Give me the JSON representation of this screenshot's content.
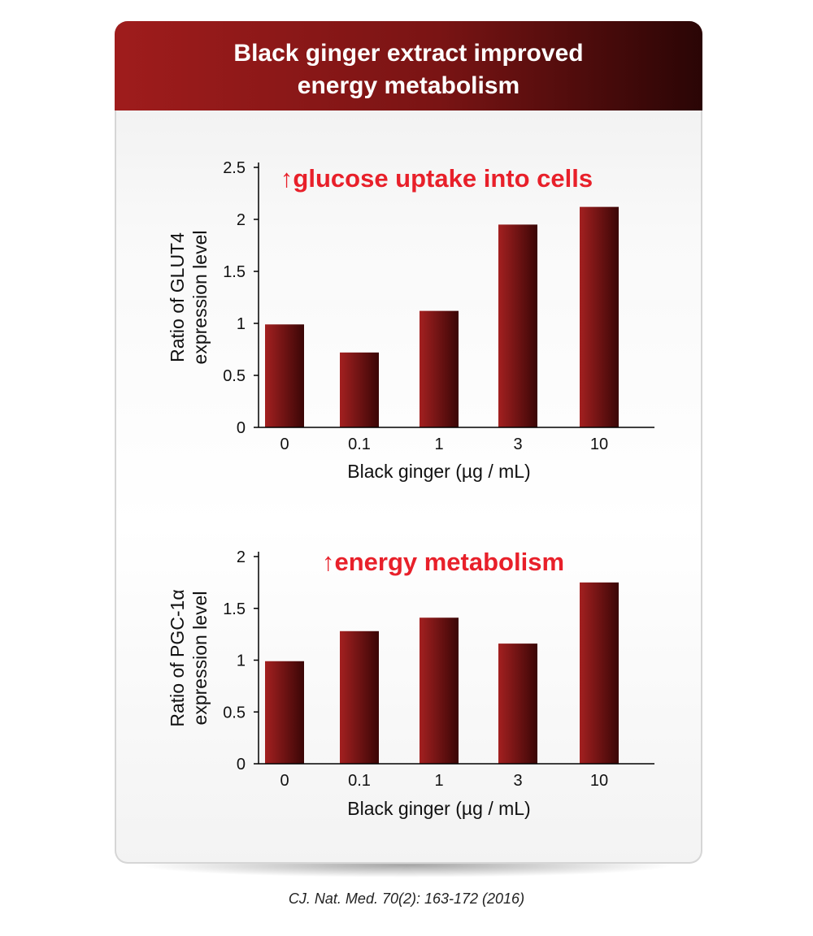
{
  "card": {
    "title": "Black ginger extract improved\nenergy metabolism"
  },
  "citation": "CJ. Nat. Med. 70(2): 163-172 (2016)",
  "colors": {
    "header_start": "#9f1c1c",
    "header_end": "#2a0505",
    "bar_light": "#a32020",
    "bar_dark": "#3a0606",
    "annotation": "#e8202a"
  },
  "chart_data": [
    {
      "type": "bar",
      "annotation": "↑glucose uptake into cells",
      "categories": [
        "0",
        "0.1",
        "1",
        "3",
        "10"
      ],
      "values": [
        0.99,
        0.72,
        1.12,
        1.95,
        2.12
      ],
      "ylabel": "Ratio of GLUT4\nexpression level",
      "xlabel": "Black ginger (µg / mL)",
      "ylim": [
        0,
        2.5
      ],
      "yticks": [
        "0",
        "0.5",
        "1",
        "1.5",
        "2",
        "2.5"
      ],
      "grid": false,
      "legend": "none"
    },
    {
      "type": "bar",
      "annotation": "↑energy metabolism",
      "categories": [
        "0",
        "0.1",
        "1",
        "3",
        "10"
      ],
      "values": [
        0.99,
        1.28,
        1.41,
        1.16,
        1.75
      ],
      "ylabel": "Ratio of PGC-1α\nexpression level",
      "xlabel": "Black ginger (µg / mL)",
      "ylim": [
        0,
        2
      ],
      "yticks": [
        "0",
        "0.5",
        "1",
        "1.5",
        "2"
      ],
      "grid": false,
      "legend": "none"
    }
  ]
}
